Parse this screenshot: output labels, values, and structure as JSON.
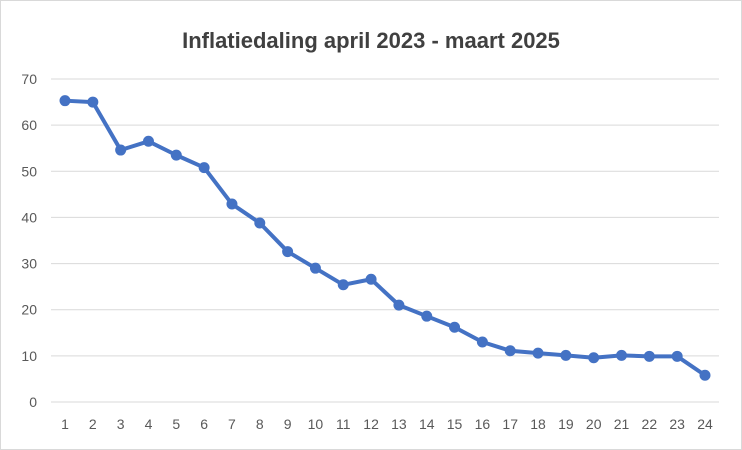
{
  "chart_data": {
    "type": "line",
    "title": "Inflatiedaling april 2023 - maart 2025",
    "xlabel": "",
    "ylabel": "",
    "x": [
      1,
      2,
      3,
      4,
      5,
      6,
      7,
      8,
      9,
      10,
      11,
      12,
      13,
      14,
      15,
      16,
      17,
      18,
      19,
      20,
      21,
      22,
      23,
      24
    ],
    "series": [
      {
        "values": [
          65.3,
          65.0,
          54.6,
          56.5,
          53.5,
          50.8,
          42.9,
          38.8,
          32.6,
          29.0,
          25.4,
          26.6,
          21.0,
          18.6,
          16.2,
          13.0,
          11.1,
          10.6,
          10.1,
          9.6,
          10.1,
          9.9,
          9.9,
          5.8
        ],
        "color": "#4472C4"
      }
    ],
    "ylim": [
      0,
      70
    ],
    "yticks": [
      0,
      10,
      20,
      30,
      40,
      50,
      60,
      70
    ],
    "grid": true,
    "legend": "none"
  }
}
